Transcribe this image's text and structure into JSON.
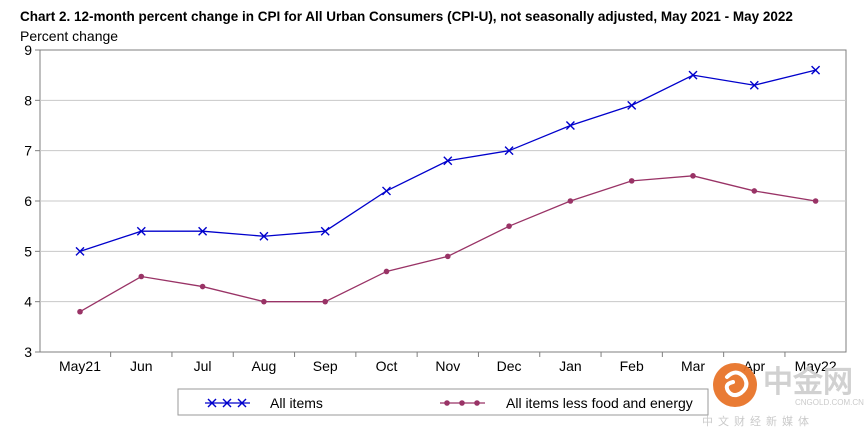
{
  "chart_data": {
    "type": "line",
    "title": "Chart 2. 12-month percent change in CPI for All Urban Consumers (CPI-U), not seasonally adjusted, May 2021 - May 2022",
    "xlabel": "",
    "ylabel": "Percent change",
    "categories": [
      "May21",
      "Jun",
      "Jul",
      "Aug",
      "Sep",
      "Oct",
      "Nov",
      "Dec",
      "Jan",
      "Feb",
      "Mar",
      "Apr",
      "May22"
    ],
    "ylim": [
      3,
      9
    ],
    "yticks": [
      "3",
      "4",
      "5",
      "6",
      "7",
      "8",
      "9"
    ],
    "grid": true,
    "legend_position": "bottom",
    "series": [
      {
        "name": "All items",
        "color": "#0000cc",
        "marker": "x",
        "values": [
          5.0,
          5.4,
          5.4,
          5.3,
          5.4,
          6.2,
          6.8,
          7.0,
          7.5,
          7.9,
          8.5,
          8.3,
          8.6
        ]
      },
      {
        "name": "All items less food and energy",
        "color": "#993366",
        "marker": "circle",
        "values": [
          3.8,
          4.5,
          4.3,
          4.0,
          4.0,
          4.6,
          4.9,
          5.5,
          6.0,
          6.4,
          6.5,
          6.2,
          6.0
        ]
      }
    ]
  },
  "watermark": {
    "brand": "中金网",
    "url": "CNGOLD.COM.CN",
    "tagline": "中文财经新媒体",
    "color": "#e8742a"
  }
}
